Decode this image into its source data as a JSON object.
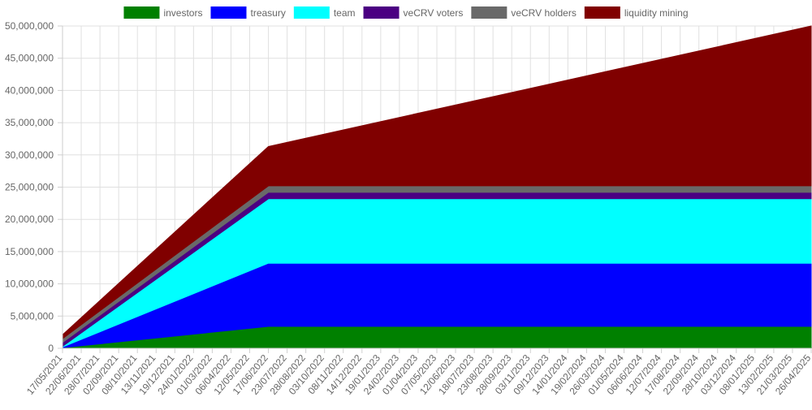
{
  "chart_data": {
    "type": "area",
    "stacked": true,
    "legend_position": "top-center",
    "grid": true,
    "ylim": [
      0,
      50000000
    ],
    "y_ticks": [
      "0",
      "5,000,000",
      "10,000,000",
      "15,000,000",
      "20,000,000",
      "25,000,000",
      "30,000,000",
      "35,000,000",
      "40,000,000",
      "45,000,000",
      "50,000,000"
    ],
    "x_ticks": [
      "17/05/2021",
      "22/06/2021",
      "28/07/2021",
      "02/09/2021",
      "08/10/2021",
      "13/11/2021",
      "19/12/2021",
      "24/01/2022",
      "01/03/2022",
      "06/04/2022",
      "12/05/2022",
      "17/06/2022",
      "23/07/2022",
      "28/08/2022",
      "03/10/2022",
      "08/11/2022",
      "14/12/2022",
      "19/01/2023",
      "24/02/2023",
      "01/04/2023",
      "07/05/2023",
      "12/06/2023",
      "18/07/2023",
      "23/08/2023",
      "28/09/2023",
      "03/11/2023",
      "09/12/2023",
      "14/01/2024",
      "19/02/2024",
      "26/03/2024",
      "01/05/2024",
      "06/06/2024",
      "12/07/2024",
      "17/08/2024",
      "22/09/2024",
      "28/10/2024",
      "03/12/2024",
      "08/01/2025",
      "13/02/2025",
      "21/03/2025",
      "26/04/2025"
    ],
    "x": [
      "17/05/2021",
      "17/06/2022",
      "26/04/2025"
    ],
    "series": [
      {
        "name": "investors",
        "color": "#008000",
        "values": [
          100000,
          3400000,
          3400000
        ]
      },
      {
        "name": "treasury",
        "color": "#0000ff",
        "values": [
          100000,
          9800000,
          9800000
        ]
      },
      {
        "name": "team",
        "color": "#00ffff",
        "values": [
          100000,
          10000000,
          10000000
        ]
      },
      {
        "name": "veCRV voters",
        "color": "#4b0082",
        "values": [
          600000,
          1000000,
          1000000
        ]
      },
      {
        "name": "veCRV holders",
        "color": "#696969",
        "values": [
          600000,
          1000000,
          1000000
        ]
      },
      {
        "name": "liquidity mining",
        "color": "#800000",
        "values": [
          600000,
          6100000,
          24800000
        ]
      }
    ]
  }
}
